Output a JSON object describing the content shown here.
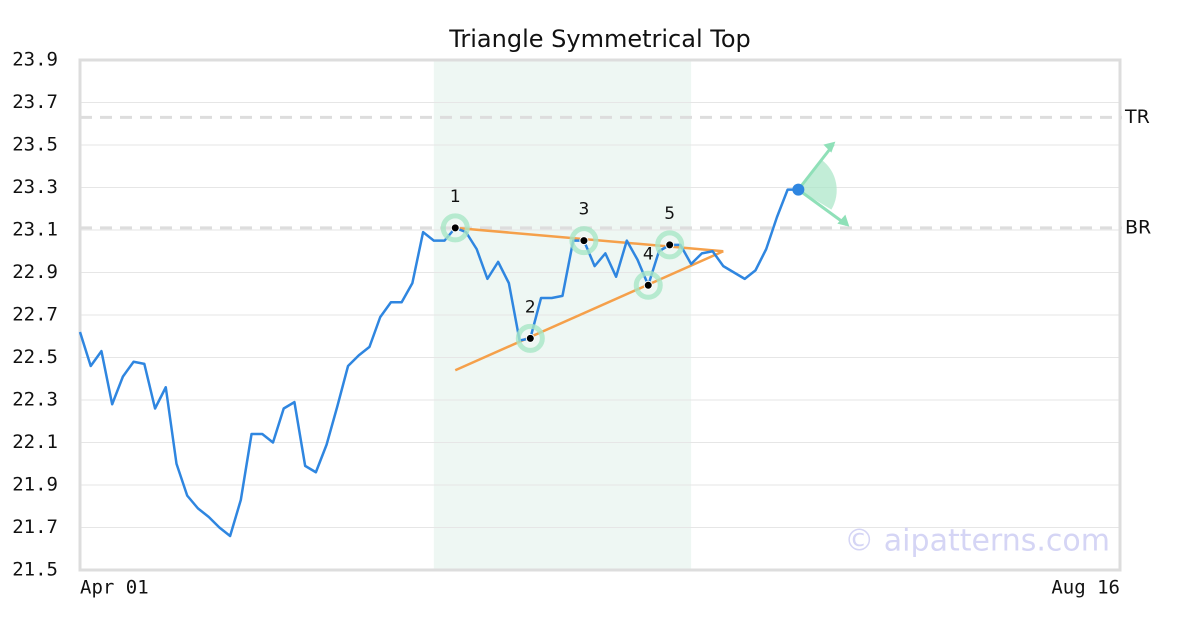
{
  "chart_data": {
    "type": "line",
    "title": "Triangle Symmetrical Top",
    "x": [
      0,
      1,
      2,
      3,
      4,
      5,
      6,
      7,
      8,
      9,
      10,
      11,
      12,
      13,
      14,
      15,
      16,
      17,
      18,
      19,
      20,
      21,
      22,
      23,
      24,
      25,
      26,
      27,
      28,
      29,
      30,
      31,
      32,
      33,
      34,
      35,
      36,
      37,
      38,
      39,
      40,
      41,
      42,
      43,
      44,
      45,
      46,
      47,
      48,
      49,
      50,
      51,
      52,
      53,
      54,
      55,
      56,
      57,
      58,
      59,
      60,
      61,
      62,
      63,
      64,
      65,
      66,
      67
    ],
    "series": [
      {
        "color": "#2f86e0",
        "values": [
          22.62,
          22.46,
          22.53,
          22.28,
          22.41,
          22.48,
          22.47,
          22.26,
          22.36,
          22.0,
          21.85,
          21.79,
          21.75,
          21.7,
          21.66,
          21.83,
          22.14,
          22.14,
          22.1,
          22.26,
          22.29,
          21.99,
          21.96,
          22.09,
          22.27,
          22.46,
          22.51,
          22.55,
          22.69,
          22.76,
          22.76,
          22.85,
          23.09,
          23.05,
          23.05,
          23.11,
          23.09,
          23.01,
          22.87,
          22.95,
          22.85,
          22.58,
          22.59,
          22.78,
          22.78,
          22.79,
          23.05,
          23.05,
          22.93,
          22.99,
          22.88,
          23.05,
          22.96,
          22.84,
          23.0,
          23.03,
          23.03,
          22.94,
          22.99,
          23.0,
          22.93,
          22.9,
          22.87,
          22.91,
          23.01,
          23.16,
          23.29,
          23.29
        ]
      }
    ],
    "xlim": [
      0,
      97
    ],
    "xticks": [
      {
        "value": 0,
        "label": "Apr 01"
      },
      {
        "value": 97,
        "label": "Aug 16"
      }
    ],
    "ylim": [
      21.5,
      23.9
    ],
    "yticks": [
      21.5,
      21.7,
      21.9,
      22.1,
      22.3,
      22.5,
      22.7,
      22.9,
      23.1,
      23.3,
      23.5,
      23.7,
      23.9
    ],
    "grid": true,
    "highlight_range": [
      33,
      57
    ],
    "levels": [
      {
        "label": "TR",
        "value": 23.63
      },
      {
        "label": "BR",
        "value": 23.11
      }
    ],
    "trendlines": {
      "color": "#f5a04a",
      "lines": [
        {
          "x": [
            35,
            60
          ],
          "y": [
            23.11,
            23.0
          ]
        },
        {
          "x": [
            35,
            60
          ],
          "y": [
            22.44,
            23.0
          ]
        }
      ]
    },
    "pattern_points": [
      {
        "label": "1",
        "x": 35,
        "y": 23.11
      },
      {
        "label": "2",
        "x": 42,
        "y": 22.59
      },
      {
        "label": "3",
        "x": 47,
        "y": 23.05
      },
      {
        "label": "4",
        "x": 53,
        "y": 22.84
      },
      {
        "label": "5",
        "x": 55,
        "y": 23.03
      }
    ],
    "watermark": "© aipatterns.com"
  }
}
